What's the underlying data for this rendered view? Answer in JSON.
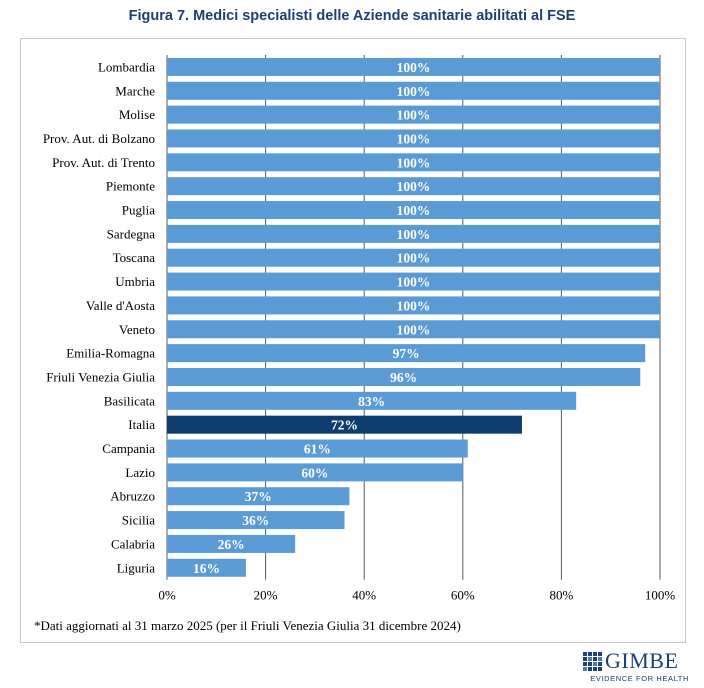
{
  "title": "Figura 7. Medici specialisti delle Aziende sanitarie abilitati al FSE",
  "footnote": "*Dati aggiornati al 31 marzo 2025 (per il Friuli Venezia Giulia 31 dicembre 2024)",
  "logo": {
    "word": "GIMBE",
    "tagline": "EVIDENCE FOR HEALTH",
    "icon": "gimbe-grid-logo-icon"
  },
  "colors": {
    "bar": "#5b9bd5",
    "highlight": "#0d3d6e",
    "grid": "#595959",
    "title": "#1f3f73"
  },
  "chart_data": {
    "type": "bar",
    "orientation": "horizontal",
    "categories": [
      "Lombardia",
      "Marche",
      "Molise",
      "Prov. Aut. di Bolzano",
      "Prov. Aut. di Trento",
      "Piemonte",
      "Puglia",
      "Sardegna",
      "Toscana",
      "Umbria",
      "Valle d'Aosta",
      "Veneto",
      "Emilia-Romagna",
      "Friuli Venezia Giulia",
      "Basilicata",
      "Italia",
      "Campania",
      "Lazio",
      "Abruzzo",
      "Sicilia",
      "Calabria",
      "Liguria"
    ],
    "values": [
      100,
      100,
      100,
      100,
      100,
      100,
      100,
      100,
      100,
      100,
      100,
      100,
      97,
      96,
      83,
      72,
      61,
      60,
      37,
      36,
      26,
      16
    ],
    "data_labels": [
      "100%",
      "100%",
      "100%",
      "100%",
      "100%",
      "100%",
      "100%",
      "100%",
      "100%",
      "100%",
      "100%",
      "100%",
      "97%",
      "96%",
      "83%",
      "72%",
      "61%",
      "60%",
      "37%",
      "36%",
      "26%",
      "16%"
    ],
    "highlight_category": "Italia",
    "xlim": [
      0,
      100
    ],
    "xticks": [
      "0%",
      "20%",
      "40%",
      "60%",
      "80%",
      "100%"
    ],
    "grid": "vertical"
  }
}
